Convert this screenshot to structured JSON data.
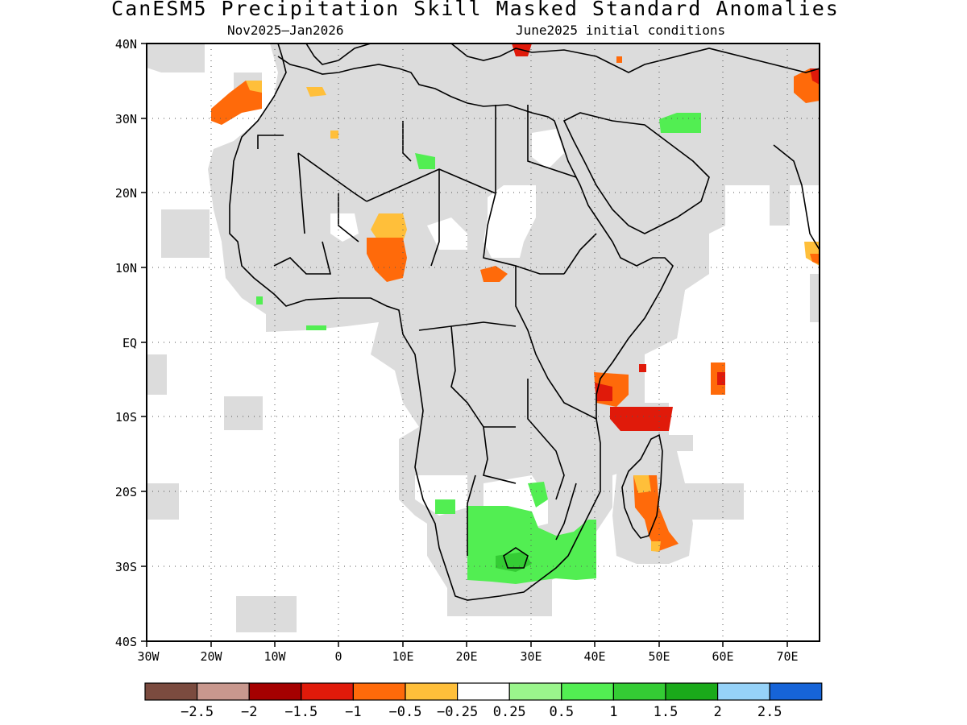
{
  "title": "CanESM5 Precipitation Skill Masked Standard Anomalies",
  "subtitle_left": "Nov2025–Jan2026",
  "subtitle_right": "June2025 initial conditions",
  "map": {
    "lon_range": [
      -30,
      75
    ],
    "lat_range": [
      -40,
      40
    ],
    "lat_labels": [
      "40N",
      "30N",
      "20N",
      "10N",
      "EQ",
      "10S",
      "20S",
      "30S",
      "40S"
    ],
    "lon_labels": [
      "30W",
      "20W",
      "10W",
      "0",
      "10E",
      "20E",
      "30E",
      "40E",
      "50E",
      "60E",
      "70E"
    ],
    "grid": true,
    "masked_color": "#dcdcdc"
  },
  "colorbar": {
    "colors": [
      "#7b4b3f",
      "#c9988e",
      "#a50000",
      "#e01a0a",
      "#ff6a0a",
      "#ffbf3a",
      "#ffffff",
      "#9af58c",
      "#52ee52",
      "#34cc34",
      "#1aaa1a",
      "#96d2f8",
      "#1664d8"
    ],
    "labels": [
      "−2.5",
      "−2",
      "−1.5",
      "−1",
      "−0.5",
      "−0.25",
      "0.25",
      "0.5",
      "1",
      "1.5",
      "2",
      "2.5"
    ]
  }
}
